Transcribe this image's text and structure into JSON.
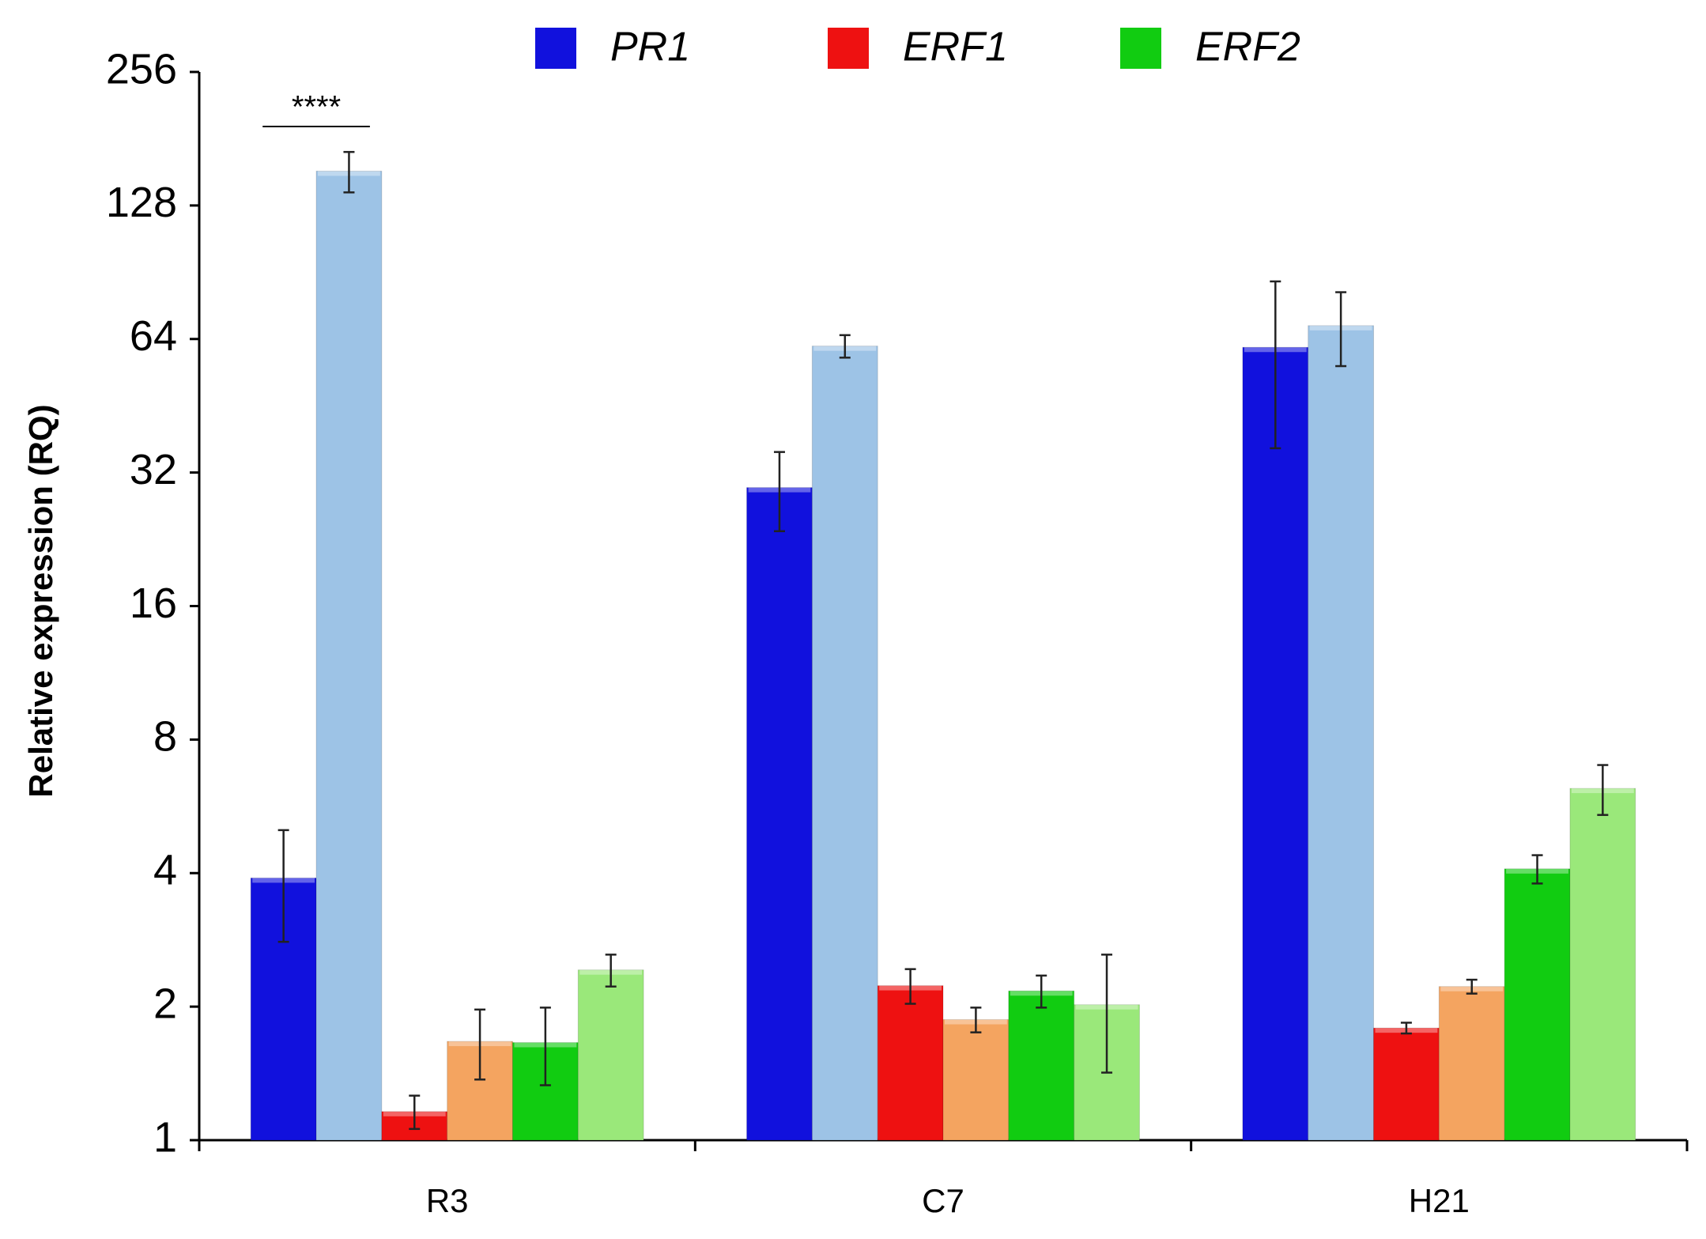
{
  "chart_data": {
    "type": "bar",
    "y_label": "Relative expression (RQ)",
    "categories": [
      "R3",
      "C7",
      "H21"
    ],
    "series": [
      {
        "name": "PR1",
        "color": "#1111dd",
        "values": [
          3.9,
          29.6,
          61.3
        ],
        "errors": [
          1.1,
          6,
          25
        ]
      },
      {
        "color": "#9dc3e6",
        "values": [
          153,
          61.7,
          68.6
        ],
        "errors": [
          16,
          3.6,
          13
        ]
      },
      {
        "name": "ERF1",
        "color": "#ee1111",
        "values": [
          1.16,
          2.23,
          1.79
        ],
        "errors": [
          0.1,
          0.2,
          0.05
        ]
      },
      {
        "color": "#f4a460",
        "values": [
          1.67,
          1.87,
          2.22
        ],
        "errors": [
          0.3,
          0.12,
          0.08
        ]
      },
      {
        "name": "ERF2",
        "color": "#11cc11",
        "values": [
          1.66,
          2.17,
          4.09
        ],
        "errors": [
          0.33,
          0.18,
          0.3
        ]
      },
      {
        "color": "#9ae87a",
        "values": [
          2.42,
          2.02,
          6.21
        ],
        "errors": [
          0.2,
          0.6,
          0.8
        ]
      }
    ],
    "annotation": "****",
    "log_scale": true,
    "grid": false,
    "ylim": [
      1,
      256
    ],
    "yticks": [
      1,
      2,
      4,
      8,
      16,
      32,
      64,
      128,
      256
    ]
  }
}
